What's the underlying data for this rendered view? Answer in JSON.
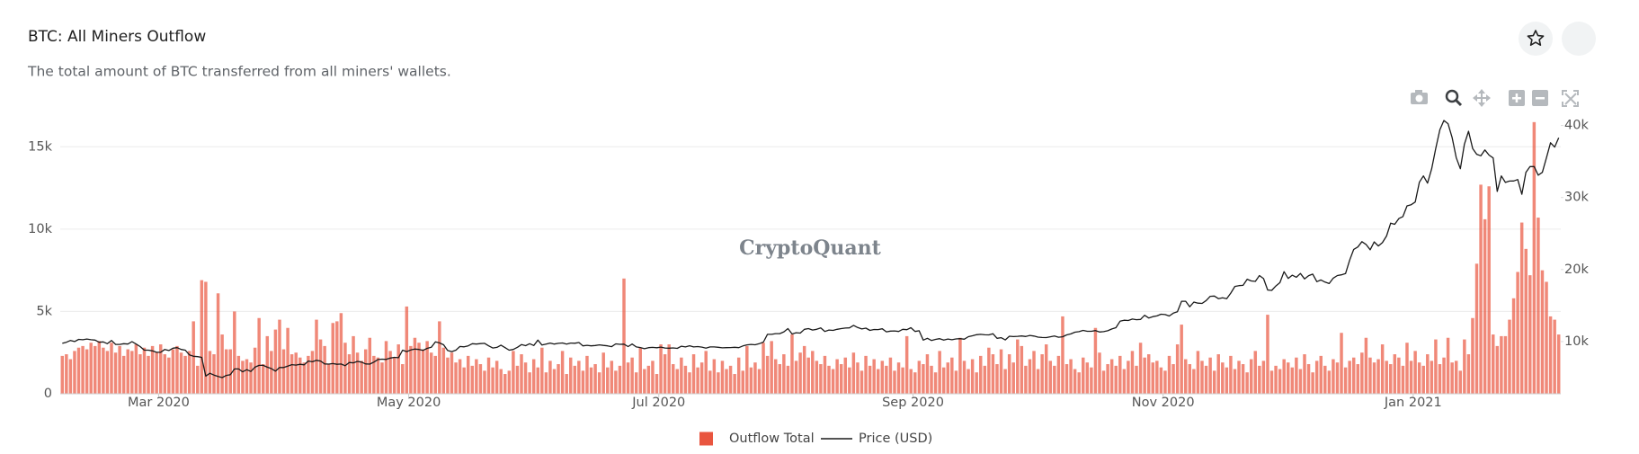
{
  "chart_data": {
    "type": "bar",
    "title": "BTC: All Miners Outflow",
    "subtitle": "The total amount of BTC transferred from all miners' wallets.",
    "watermark": "CryptoQuant",
    "xlim": [
      0,
      366
    ],
    "xticks": [
      {
        "value": 24,
        "label": "Mar 2020"
      },
      {
        "value": 85,
        "label": "May 2020"
      },
      {
        "value": 146,
        "label": "Jul 2020"
      },
      {
        "value": 208,
        "label": "Sep 2020"
      },
      {
        "value": 269,
        "label": "Nov 2020"
      },
      {
        "value": 330,
        "label": "Jan 2021"
      }
    ],
    "ylim": [
      0,
      16600
    ],
    "yticks": [
      0,
      {
        "value": 5000,
        "label": "5k"
      },
      {
        "value": 10000,
        "label": "10k"
      },
      {
        "value": 15000,
        "label": "15k"
      }
    ],
    "y2lim": [
      2750,
      40700
    ],
    "y2ticks": [
      {
        "value": 10000,
        "label": "10k"
      },
      {
        "value": 20000,
        "label": "20k"
      },
      {
        "value": 30000,
        "label": "30k"
      },
      {
        "value": 40000,
        "label": "40k"
      }
    ],
    "grid": true,
    "legend": "bottom",
    "series": [
      {
        "name": "Outflow Total",
        "type": "bar",
        "color": "#e9553f",
        "values": [
          2300,
          2400,
          2100,
          2600,
          2800,
          2900,
          2700,
          3100,
          2900,
          3200,
          2800,
          2600,
          3100,
          2500,
          2900,
          2300,
          2700,
          2600,
          3000,
          2400,
          2800,
          2300,
          2900,
          2500,
          3000,
          2400,
          2200,
          2700,
          2900,
          2500,
          2300,
          2600,
          4400,
          1700,
          6900,
          6800,
          2600,
          2400,
          6100,
          3600,
          2700,
          2700,
          5000,
          2300,
          2000,
          2100,
          1900,
          2800,
          4600,
          1800,
          3500,
          2600,
          3900,
          4500,
          2700,
          4000,
          2400,
          2500,
          2200,
          1900,
          2300,
          2600,
          4500,
          3300,
          2900,
          1800,
          4300,
          4400,
          4900,
          3100,
          2400,
          3500,
          2500,
          2000,
          2700,
          3400,
          2300,
          2200,
          1900,
          3200,
          2600,
          2200,
          3000,
          1800,
          5300,
          2900,
          3400,
          3100,
          2700,
          3200,
          2500,
          2300,
          4400,
          2800,
          2200,
          2500,
          1900,
          2100,
          1600,
          2300,
          1700,
          2100,
          1800,
          1400,
          2200,
          1600,
          2000,
          1500,
          1200,
          1400,
          2600,
          1700,
          2400,
          1900,
          1300,
          2100,
          1600,
          2800,
          1300,
          2000,
          1500,
          1800,
          2600,
          1200,
          2200,
          1700,
          2000,
          1400,
          2300,
          1600,
          1800,
          1300,
          2500,
          1600,
          2000,
          1400,
          1700,
          7000,
          1900,
          2200,
          1300,
          2800,
          1500,
          1700,
          2000,
          1200,
          3000,
          2400,
          3000,
          1800,
          1500,
          2200,
          1700,
          1300,
          2400,
          1600,
          1900,
          2600,
          1400,
          2100,
          1300,
          2000,
          1500,
          1700,
          1200,
          2200,
          1400,
          2900,
          1600,
          1900,
          1500,
          3100,
          2300,
          3200,
          2100,
          1800,
          2400,
          1700,
          3600,
          2000,
          2500,
          2900,
          2200,
          2600,
          2000,
          1800,
          2300,
          1700,
          1500,
          2100,
          1800,
          2200,
          1600,
          2500,
          1900,
          1400,
          2300,
          1700,
          2100,
          1500,
          2000,
          1700,
          2200,
          1400,
          1900,
          1600,
          3500,
          1500,
          1300,
          2000,
          1800,
          2400,
          1700,
          1300,
          2600,
          1600,
          1900,
          2200,
          1400,
          3400,
          2000,
          1500,
          2100,
          1300,
          2300,
          1700,
          2800,
          2400,
          1800,
          2700,
          1500,
          2400,
          1900,
          3300,
          2900,
          1700,
          2100,
          2600,
          1500,
          2400,
          3000,
          2000,
          1700,
          2300,
          4700,
          1800,
          2100,
          1500,
          1300,
          2200,
          1900,
          1600,
          4000,
          2500,
          1400,
          1800,
          2100,
          1700,
          2300,
          1500,
          2000,
          2600,
          1700,
          3100,
          2200,
          2400,
          1900,
          2000,
          1600,
          1400,
          2300,
          1800,
          3000,
          4200,
          2100,
          1800,
          1500,
          2600,
          2000,
          1700,
          2200,
          1400,
          2400,
          1900,
          1600,
          2300,
          1500,
          2000,
          1800,
          1300,
          2100,
          2600,
          1700,
          2000,
          4800,
          1400,
          1700,
          1500,
          2100,
          1900,
          1600,
          2200,
          1500,
          2400,
          1800,
          1300,
          2000,
          2300,
          1700,
          1400,
          2100,
          1900,
          3700,
          1600,
          2000,
          2200,
          1800,
          2500,
          3400,
          2200,
          1900,
          2100,
          3000,
          2000,
          1800,
          2400,
          2200,
          1700,
          3100,
          2000,
          2600,
          1900,
          1700,
          2400,
          2000,
          3300,
          1800,
          2200,
          3400,
          1900,
          2000,
          1400,
          3300,
          2400,
          4600,
          7900,
          12700,
          10600,
          12600,
          3600,
          2900,
          3500,
          3500,
          4500,
          5800,
          7400,
          10400,
          8800,
          7200,
          16500,
          10700,
          7500,
          6800,
          4700,
          4500,
          3600
        ]
      },
      {
        "name": "Price (USD)",
        "type": "line",
        "axis": "y2",
        "color": "#1a1a1a",
        "values": [
          9750,
          9900,
          10150,
          10000,
          10300,
          10250,
          10350,
          10250,
          10200,
          9900,
          9950,
          9700,
          10150,
          9600,
          9600,
          9700,
          9650,
          9990,
          9650,
          9300,
          8800,
          8800,
          8700,
          8500,
          8520,
          8900,
          8750,
          9080,
          9150,
          8900,
          8800,
          8150,
          7950,
          7900,
          7800,
          5200,
          5600,
          5350,
          5150,
          5000,
          5300,
          5400,
          6200,
          6200,
          5800,
          6100,
          5850,
          6450,
          6700,
          6700,
          6450,
          6250,
          5900,
          6400,
          6400,
          6600,
          6800,
          6730,
          6850,
          6770,
          7300,
          7200,
          7400,
          7300,
          6900,
          6870,
          6950,
          6850,
          6880,
          6650,
          7100,
          7050,
          7250,
          7150,
          6900,
          6870,
          7150,
          7500,
          7550,
          7520,
          7700,
          7800,
          7760,
          8800,
          8600,
          8830,
          8960,
          8900,
          8780,
          9050,
          9200,
          9950,
          9820,
          9550,
          8750,
          8600,
          8800,
          9320,
          9270,
          9400,
          9700,
          9650,
          9720,
          9750,
          9400,
          9100,
          9190,
          9500,
          9150,
          8800,
          8900,
          9200,
          9580,
          9430,
          9700,
          9450,
          10200,
          9520,
          9650,
          9790,
          9650,
          9750,
          9800,
          9650,
          9790,
          9770,
          9870,
          9400,
          9480,
          9400,
          9450,
          9540,
          9460,
          9400,
          9290,
          9680,
          9620,
          9640,
          9300,
          9650,
          9250,
          9170,
          9000,
          9150,
          9190,
          9140,
          9230,
          9100,
          9080,
          9120,
          9050,
          9350,
          9250,
          9420,
          9250,
          9300,
          9230,
          9090,
          9250,
          9260,
          9200,
          9130,
          9150,
          9170,
          9210,
          9160,
          9390,
          9540,
          9600,
          9550,
          9700,
          9930,
          11000,
          11000,
          11100,
          11100,
          11350,
          11800,
          11050,
          11230,
          11180,
          11700,
          11800,
          11600,
          11700,
          11900,
          11400,
          11600,
          11550,
          11700,
          11800,
          11870,
          11900,
          12250,
          11950,
          11750,
          11860,
          11550,
          11680,
          11660,
          11770,
          11350,
          11450,
          11480,
          11400,
          11700,
          11650,
          11920,
          11400,
          11500,
          10200,
          10450,
          10150,
          10300,
          10400,
          10200,
          10350,
          10250,
          10360,
          10400,
          10330,
          10680,
          10800,
          10950,
          11000,
          10940,
          10930,
          11090,
          10450,
          10540,
          10230,
          10740,
          10690,
          10730,
          10780,
          10700,
          10850,
          10770,
          10620,
          10570,
          10550,
          10670,
          10780,
          10600,
          10670,
          10930,
          11060,
          11300,
          11380,
          11550,
          11430,
          11430,
          11520,
          11330,
          11370,
          11500,
          11750,
          11920,
          12820,
          12960,
          12930,
          13120,
          13040,
          13070,
          13650,
          13270,
          13460,
          13560,
          13800,
          13750,
          13550,
          13950,
          14130,
          15590,
          15600,
          14830,
          15480,
          15330,
          15300,
          15700,
          16280,
          16320,
          15960,
          16080,
          15960,
          16720,
          17650,
          17770,
          17800,
          18660,
          18420,
          18350,
          19160,
          18740,
          17150,
          17110,
          17720,
          18180,
          19700,
          18770,
          19210,
          18930,
          19450,
          18700,
          19150,
          19360,
          18320,
          18550,
          18250,
          18050,
          18800,
          19170,
          19270,
          19440,
          21310,
          22800,
          23140,
          23870,
          23480,
          22750,
          23830,
          23270,
          23740,
          24660,
          26440,
          26280,
          27080,
          27360,
          28840,
          29000,
          29380,
          32130,
          33000,
          32000,
          34000,
          36800,
          39400,
          40700,
          40250,
          38300,
          35550,
          34000,
          37400,
          39200,
          36800,
          36000,
          35800,
          36600,
          35900,
          35500,
          30850,
          33000,
          32100,
          32280,
          32300,
          32500,
          30450,
          33500,
          34300,
          34300,
          33100,
          33500,
          35500,
          37600,
          37000,
          38300
        ]
      }
    ]
  }
}
